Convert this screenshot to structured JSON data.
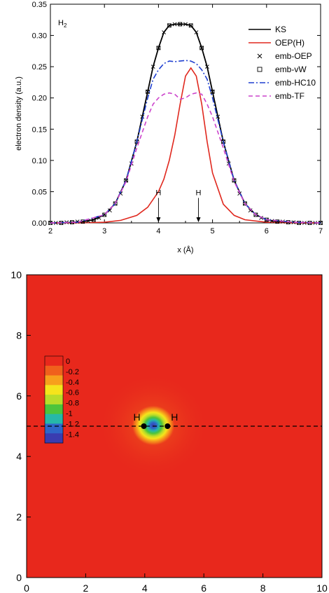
{
  "chart_data": [
    {
      "type": "line",
      "panel_label": "H",
      "panel_label_sub": "2",
      "xlabel": "x (Å)",
      "ylabel": "electron density (a.u.)",
      "xlim": [
        2,
        7
      ],
      "ylim": [
        0,
        0.35
      ],
      "xticks": [
        "2",
        "3",
        "4",
        "5",
        "6",
        "7"
      ],
      "yticks": [
        "0.00",
        "0.05",
        "0.10",
        "0.15",
        "0.20",
        "0.25",
        "0.30",
        "0.35"
      ],
      "legend_position": "top-right",
      "series": [
        {
          "name": "KS",
          "color": "#000000",
          "style": "solid",
          "x": [
            2.0,
            2.2,
            2.4,
            2.6,
            2.8,
            3.0,
            3.2,
            3.4,
            3.6,
            3.8,
            3.9,
            4.0,
            4.1,
            4.2,
            4.3,
            4.4,
            4.5,
            4.6,
            4.7,
            4.8,
            4.9,
            5.0,
            5.2,
            5.4,
            5.6,
            5.8,
            6.0,
            6.2,
            6.4,
            6.6,
            6.8,
            7.0
          ],
          "y": [
            0.0,
            0.0,
            0.001,
            0.002,
            0.005,
            0.013,
            0.031,
            0.068,
            0.13,
            0.21,
            0.25,
            0.28,
            0.305,
            0.316,
            0.318,
            0.318,
            0.318,
            0.316,
            0.305,
            0.28,
            0.25,
            0.21,
            0.13,
            0.068,
            0.031,
            0.013,
            0.005,
            0.002,
            0.001,
            0.0,
            0.0,
            0.0
          ]
        },
        {
          "name": "OEP(H)",
          "color": "#e0281e",
          "style": "solid",
          "x": [
            2.0,
            2.5,
            3.0,
            3.3,
            3.6,
            3.8,
            4.0,
            4.1,
            4.2,
            4.3,
            4.4,
            4.5,
            4.6,
            4.7,
            4.8,
            4.9,
            5.0,
            5.2,
            5.4,
            5.6,
            6.0,
            6.5,
            7.0
          ],
          "y": [
            0.0,
            0.0,
            0.001,
            0.004,
            0.012,
            0.025,
            0.05,
            0.07,
            0.1,
            0.14,
            0.19,
            0.235,
            0.248,
            0.235,
            0.19,
            0.13,
            0.08,
            0.03,
            0.012,
            0.005,
            0.001,
            0.0,
            0.0
          ]
        },
        {
          "name": "emb-OEP",
          "color": "#000000",
          "style": "cross-markers",
          "x": [
            2.0,
            2.1,
            2.2,
            2.3,
            2.4,
            2.5,
            2.6,
            2.7,
            2.8,
            2.9,
            3.0,
            3.1,
            3.2,
            3.3,
            3.4,
            3.5,
            3.6,
            3.7,
            3.8,
            3.9,
            4.0,
            4.1,
            4.2,
            4.3,
            4.4,
            4.5,
            4.6,
            4.7,
            4.8,
            4.9,
            5.0,
            5.1,
            5.2,
            5.3,
            5.4,
            5.5,
            5.6,
            5.7,
            5.8,
            5.9,
            6.0,
            6.1,
            6.2,
            6.3,
            6.4,
            6.5,
            6.6,
            6.7,
            6.8,
            6.9,
            7.0
          ],
          "y": [
            0.0,
            0.0,
            0.0,
            0.001,
            0.001,
            0.002,
            0.002,
            0.003,
            0.005,
            0.008,
            0.013,
            0.02,
            0.031,
            0.047,
            0.068,
            0.095,
            0.13,
            0.17,
            0.21,
            0.25,
            0.28,
            0.305,
            0.316,
            0.318,
            0.318,
            0.318,
            0.316,
            0.305,
            0.28,
            0.25,
            0.21,
            0.17,
            0.13,
            0.095,
            0.068,
            0.047,
            0.031,
            0.02,
            0.013,
            0.008,
            0.005,
            0.003,
            0.002,
            0.002,
            0.001,
            0.001,
            0.0,
            0.0,
            0.0,
            0.0,
            0.0
          ]
        },
        {
          "name": "emb-vW",
          "color": "#000000",
          "style": "square-markers",
          "x": [
            2.0,
            2.2,
            2.4,
            2.6,
            2.8,
            3.0,
            3.2,
            3.4,
            3.6,
            3.8,
            4.0,
            4.2,
            4.4,
            4.6,
            4.8,
            5.0,
            5.2,
            5.4,
            5.6,
            5.8,
            6.0,
            6.2,
            6.4,
            6.6,
            6.8,
            7.0
          ],
          "y": [
            0.0,
            0.0,
            0.001,
            0.002,
            0.005,
            0.013,
            0.031,
            0.068,
            0.13,
            0.21,
            0.28,
            0.316,
            0.318,
            0.316,
            0.28,
            0.21,
            0.13,
            0.068,
            0.031,
            0.013,
            0.005,
            0.002,
            0.001,
            0.0,
            0.0,
            0.0
          ]
        },
        {
          "name": "emb-HC10",
          "color": "#1f3fd0",
          "style": "dash-dot",
          "x": [
            2.0,
            2.5,
            3.0,
            3.2,
            3.4,
            3.6,
            3.8,
            3.9,
            4.0,
            4.1,
            4.2,
            4.3,
            4.4,
            4.5,
            4.6,
            4.7,
            4.8,
            4.9,
            5.0,
            5.2,
            5.4,
            5.6,
            5.8,
            6.0,
            6.5,
            7.0
          ],
          "y": [
            0.0,
            0.001,
            0.013,
            0.031,
            0.068,
            0.13,
            0.2,
            0.23,
            0.245,
            0.255,
            0.259,
            0.258,
            0.259,
            0.26,
            0.259,
            0.255,
            0.245,
            0.23,
            0.2,
            0.13,
            0.068,
            0.031,
            0.013,
            0.005,
            0.001,
            0.0
          ]
        },
        {
          "name": "emb-TF",
          "color": "#cc44cc",
          "style": "dashed",
          "x": [
            2.0,
            2.5,
            3.0,
            3.2,
            3.4,
            3.6,
            3.8,
            3.9,
            4.0,
            4.1,
            4.2,
            4.3,
            4.4,
            4.5,
            4.6,
            4.7,
            4.8,
            4.9,
            5.0,
            5.2,
            5.4,
            5.6,
            5.8,
            6.0,
            6.5,
            7.0
          ],
          "y": [
            0.0,
            0.001,
            0.013,
            0.031,
            0.066,
            0.12,
            0.17,
            0.19,
            0.2,
            0.206,
            0.208,
            0.206,
            0.198,
            0.2,
            0.206,
            0.208,
            0.206,
            0.19,
            0.17,
            0.12,
            0.066,
            0.031,
            0.013,
            0.005,
            0.001,
            0.0
          ]
        }
      ],
      "annotations": [
        {
          "text": "H",
          "x": 4.0,
          "arrow_from_y": 0.04,
          "arrow_to_y": 0.0
        },
        {
          "text": "H",
          "x": 4.74,
          "arrow_from_y": 0.04,
          "arrow_to_y": 0.0
        }
      ]
    },
    {
      "type": "heatmap",
      "xlim": [
        0,
        10
      ],
      "ylim": [
        0,
        10
      ],
      "xticks": [
        "0",
        "2",
        "4",
        "6",
        "8",
        "10"
      ],
      "yticks": [
        "0",
        "2",
        "4",
        "6",
        "8",
        "10"
      ],
      "colorbar": {
        "labels": [
          "0",
          "-0.2",
          "-0.4",
          "-0.6",
          "-0.8",
          "-1",
          "-1.2",
          "-1.4"
        ],
        "colors": [
          "#e8281c",
          "#f0601c",
          "#f7a01c",
          "#f5e41c",
          "#b8dc2a",
          "#4cc43c",
          "#26b8a8",
          "#2e66c8",
          "#3a3cb0"
        ],
        "range": [
          -1.4,
          0
        ]
      },
      "background_value": 0,
      "feature": {
        "center": [
          4.37,
          5.0
        ],
        "min_value": -1.4
      },
      "atoms": [
        {
          "label": "H",
          "x": 3.97,
          "y": 5.0
        },
        {
          "label": "H",
          "x": 4.77,
          "y": 5.0
        }
      ],
      "dashed_line_y": 5.0
    }
  ]
}
